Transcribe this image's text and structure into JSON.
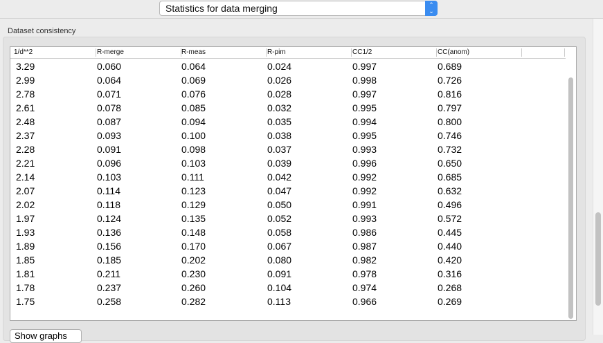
{
  "header": {
    "selector_value": "Statistics for data merging"
  },
  "group": {
    "title": "Dataset consistency"
  },
  "table": {
    "columns": [
      "1/d**2",
      "R-merge",
      "R-meas",
      "R-pim",
      "CC1/2",
      "CC(anom)"
    ],
    "rows": [
      [
        "3.29",
        "0.060",
        "0.064",
        "0.024",
        "0.997",
        "0.689"
      ],
      [
        "2.99",
        "0.064",
        "0.069",
        "0.026",
        "0.998",
        "0.726"
      ],
      [
        "2.78",
        "0.071",
        "0.076",
        "0.028",
        "0.997",
        "0.816"
      ],
      [
        "2.61",
        "0.078",
        "0.085",
        "0.032",
        "0.995",
        "0.797"
      ],
      [
        "2.48",
        "0.087",
        "0.094",
        "0.035",
        "0.994",
        "0.800"
      ],
      [
        "2.37",
        "0.093",
        "0.100",
        "0.038",
        "0.995",
        "0.746"
      ],
      [
        "2.28",
        "0.091",
        "0.098",
        "0.037",
        "0.993",
        "0.732"
      ],
      [
        "2.21",
        "0.096",
        "0.103",
        "0.039",
        "0.996",
        "0.650"
      ],
      [
        "2.14",
        "0.103",
        "0.111",
        "0.042",
        "0.992",
        "0.685"
      ],
      [
        "2.07",
        "0.114",
        "0.123",
        "0.047",
        "0.992",
        "0.632"
      ],
      [
        "2.02",
        "0.118",
        "0.129",
        "0.050",
        "0.991",
        "0.496"
      ],
      [
        "1.97",
        "0.124",
        "0.135",
        "0.052",
        "0.993",
        "0.572"
      ],
      [
        "1.93",
        "0.136",
        "0.148",
        "0.058",
        "0.986",
        "0.445"
      ],
      [
        "1.89",
        "0.156",
        "0.170",
        "0.067",
        "0.987",
        "0.440"
      ],
      [
        "1.85",
        "0.185",
        "0.202",
        "0.080",
        "0.982",
        "0.420"
      ],
      [
        "1.81",
        "0.211",
        "0.230",
        "0.091",
        "0.978",
        "0.316"
      ],
      [
        "1.78",
        "0.237",
        "0.260",
        "0.104",
        "0.974",
        "0.268"
      ],
      [
        "1.75",
        "0.258",
        "0.282",
        "0.113",
        "0.966",
        "0.269"
      ]
    ]
  },
  "buttons": {
    "show_graphs": "Show graphs"
  }
}
